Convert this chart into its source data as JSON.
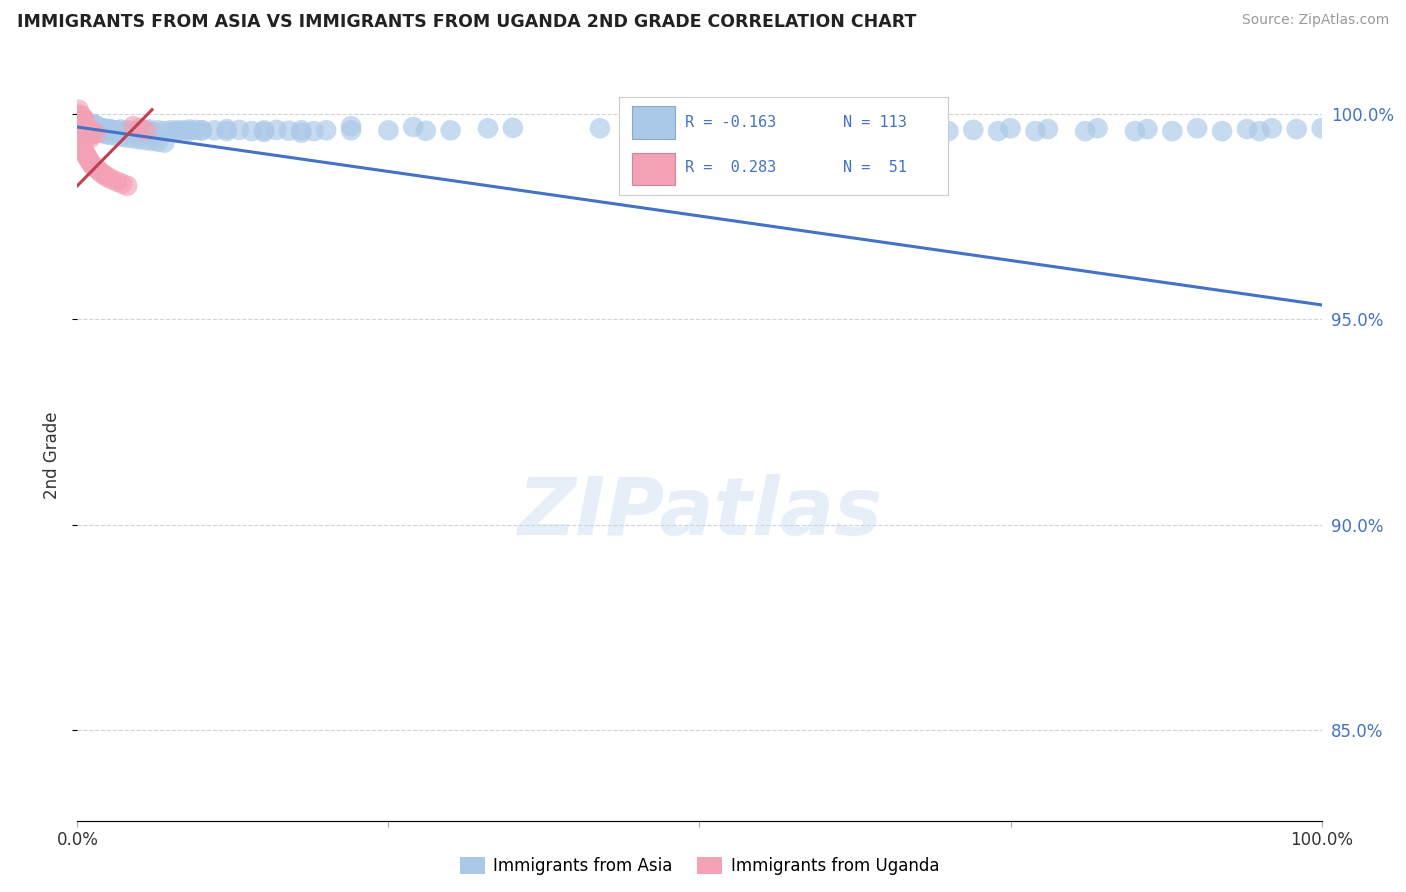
{
  "title": "IMMIGRANTS FROM ASIA VS IMMIGRANTS FROM UGANDA 2ND GRADE CORRELATION CHART",
  "source": "Source: ZipAtlas.com",
  "ylabel": "2nd Grade",
  "legend_blue_label": "Immigrants from Asia",
  "legend_pink_label": "Immigrants from Uganda",
  "watermark": "ZIPatlas",
  "blue_color": "#aac8e8",
  "blue_line_color": "#4472c4",
  "pink_color": "#f4a0b5",
  "pink_line_color": "#c04050",
  "blue_scatter_x": [
    0.002,
    0.003,
    0.004,
    0.005,
    0.006,
    0.007,
    0.008,
    0.009,
    0.01,
    0.011,
    0.012,
    0.013,
    0.014,
    0.015,
    0.016,
    0.017,
    0.018,
    0.019,
    0.02,
    0.021,
    0.022,
    0.023,
    0.025,
    0.027,
    0.028,
    0.03,
    0.032,
    0.035,
    0.038,
    0.04,
    0.042,
    0.045,
    0.048,
    0.05,
    0.055,
    0.058,
    0.06,
    0.065,
    0.07,
    0.075,
    0.08,
    0.085,
    0.09,
    0.095,
    0.1,
    0.11,
    0.12,
    0.13,
    0.14,
    0.15,
    0.16,
    0.17,
    0.18,
    0.19,
    0.2,
    0.22,
    0.25,
    0.28,
    0.3,
    0.33,
    0.007,
    0.009,
    0.011,
    0.013,
    0.015,
    0.018,
    0.02,
    0.023,
    0.026,
    0.03,
    0.035,
    0.04,
    0.045,
    0.05,
    0.055,
    0.06,
    0.065,
    0.07,
    0.08,
    0.09,
    0.1,
    0.12,
    0.15,
    0.18,
    0.22,
    0.27,
    0.35,
    0.42,
    0.5,
    0.58,
    0.62,
    0.65,
    0.68,
    0.72,
    0.75,
    0.78,
    0.82,
    0.86,
    0.9,
    0.94,
    0.96,
    0.98,
    1.0,
    0.63,
    0.66,
    0.7,
    0.74,
    0.77,
    0.81,
    0.85,
    0.88,
    0.92,
    0.95
  ],
  "blue_scatter_y": [
    0.9985,
    0.9982,
    0.9978,
    0.9975,
    0.9972,
    0.9978,
    0.998,
    0.9976,
    0.9973,
    0.997,
    0.9972,
    0.9975,
    0.9973,
    0.9971,
    0.9968,
    0.9967,
    0.9966,
    0.9965,
    0.9963,
    0.9965,
    0.9962,
    0.9961,
    0.9963,
    0.9962,
    0.9961,
    0.996,
    0.996,
    0.9962,
    0.9958,
    0.996,
    0.9959,
    0.9956,
    0.9958,
    0.9956,
    0.996,
    0.9962,
    0.9956,
    0.996,
    0.9958,
    0.996,
    0.9958,
    0.996,
    0.9962,
    0.9961,
    0.996,
    0.996,
    0.9963,
    0.9961,
    0.9958,
    0.996,
    0.9961,
    0.9959,
    0.996,
    0.9958,
    0.996,
    0.996,
    0.996,
    0.9959,
    0.996,
    0.9965,
    0.9968,
    0.9965,
    0.9962,
    0.996,
    0.9958,
    0.9955,
    0.9953,
    0.9951,
    0.9949,
    0.9947,
    0.9944,
    0.9942,
    0.994,
    0.9938,
    0.9936,
    0.9934,
    0.9932,
    0.993,
    0.996,
    0.9958,
    0.996,
    0.9958,
    0.9956,
    0.9954,
    0.997,
    0.9968,
    0.9966,
    0.9965,
    0.9963,
    0.9961,
    0.996,
    0.9965,
    0.9963,
    0.9961,
    0.9965,
    0.9963,
    0.9965,
    0.9963,
    0.9965,
    0.9963,
    0.9965,
    0.9963,
    0.9965,
    0.996,
    0.9958,
    0.9958,
    0.9958,
    0.9958,
    0.9958,
    0.9958,
    0.9958,
    0.9958,
    0.9958
  ],
  "pink_scatter_x": [
    0.001,
    0.002,
    0.003,
    0.004,
    0.005,
    0.001,
    0.002,
    0.003,
    0.004,
    0.005,
    0.006,
    0.007,
    0.008,
    0.009,
    0.01,
    0.001,
    0.002,
    0.003,
    0.004,
    0.005,
    0.006,
    0.007,
    0.008,
    0.009,
    0.01,
    0.011,
    0.012,
    0.014,
    0.016,
    0.018,
    0.02,
    0.022,
    0.025,
    0.028,
    0.032,
    0.036,
    0.04,
    0.045,
    0.05,
    0.055,
    0.002,
    0.003,
    0.004,
    0.005,
    0.006,
    0.007,
    0.008,
    0.009,
    0.01,
    0.012,
    0.015
  ],
  "pink_scatter_y": [
    1.001,
    0.9998,
    0.9995,
    0.9992,
    0.999,
    0.9985,
    0.998,
    0.9975,
    0.997,
    0.9965,
    0.996,
    0.9955,
    0.995,
    0.9945,
    0.994,
    0.993,
    0.9925,
    0.992,
    0.9915,
    0.991,
    0.9905,
    0.99,
    0.9895,
    0.989,
    0.9885,
    0.988,
    0.9875,
    0.987,
    0.9865,
    0.986,
    0.9855,
    0.985,
    0.9845,
    0.984,
    0.9835,
    0.983,
    0.9825,
    0.997,
    0.9965,
    0.996,
    0.9992,
    0.9988,
    0.9984,
    0.998,
    0.9976,
    0.9972,
    0.9968,
    0.9964,
    0.996,
    0.9956,
    0.9952
  ],
  "blue_trendline_x": [
    0.0,
    1.0
  ],
  "blue_trendline_y": [
    0.9968,
    0.9535
  ],
  "pink_trendline_x": [
    0.0,
    0.06
  ],
  "pink_trendline_y": [
    0.9825,
    1.001
  ],
  "xlim": [
    0.0,
    1.0
  ],
  "ylim": [
    0.828,
    1.006
  ],
  "yticks": [
    0.85,
    0.9,
    0.95,
    1.0
  ],
  "ytick_labels": [
    "85.0%",
    "90.0%",
    "95.0%",
    "100.0%"
  ]
}
